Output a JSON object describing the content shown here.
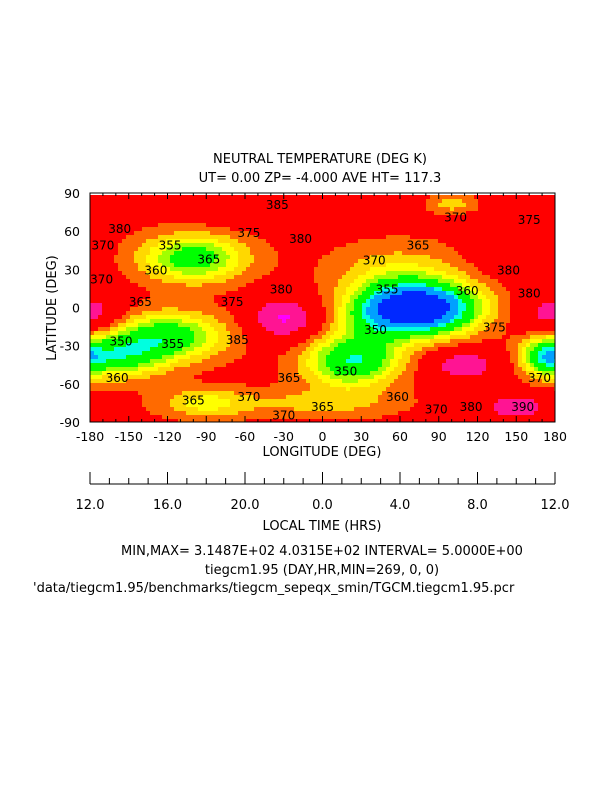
{
  "chart_data": {
    "type": "heatmap",
    "subtype": "filled-contour",
    "title": "NEUTRAL TEMPERATURE (DEG K)",
    "subtitle": "UT= 0.00 ZP= -4.000 AVE HT= 117.3",
    "xlabel": "LONGITUDE (DEG)",
    "ylabel": "LATITUDE (DEG)",
    "xlim": [
      -180,
      180
    ],
    "ylim": [
      -90,
      90
    ],
    "xticks": [
      "-180",
      "-150",
      "-120",
      "-90",
      "-60",
      "-30",
      "0",
      "30",
      "60",
      "90",
      "120",
      "150",
      "180"
    ],
    "yticks": [
      "90",
      "60",
      "30",
      "0",
      "-30",
      "-60",
      "-90"
    ],
    "secondary_axis": {
      "label": "LOCAL TIME (HRS)",
      "ticks": [
        {
          "lon": -180,
          "label": "12.0"
        },
        {
          "lon": -120,
          "label": "16.0"
        },
        {
          "lon": -60,
          "label": "20.0"
        },
        {
          "lon": 0,
          "label": "0.0"
        },
        {
          "lon": 60,
          "label": "4.0"
        },
        {
          "lon": 120,
          "label": "8.0"
        },
        {
          "lon": 180,
          "label": "12.0"
        }
      ]
    },
    "min": 314.87,
    "max": 403.15,
    "interval": 5.0,
    "base_value": 377,
    "features": [
      {
        "lon": 75,
        "lat": 0,
        "amp": -62,
        "slon": 30,
        "slat": 14
      },
      {
        "lon": -100,
        "lat": 40,
        "amp": -27,
        "slon": 28,
        "slat": 13
      },
      {
        "lon": -120,
        "lat": -22,
        "amp": -28,
        "slon": 30,
        "slat": 13
      },
      {
        "lon": -160,
        "lat": -38,
        "amp": -26,
        "slon": 25,
        "slat": 12
      },
      {
        "lon": 22,
        "lat": -42,
        "amp": -30,
        "slon": 25,
        "slat": 14
      },
      {
        "lon": 40,
        "lat": -10,
        "amp": -12,
        "slon": 20,
        "slat": 20
      },
      {
        "lon": 60,
        "lat": 30,
        "amp": -10,
        "slon": 35,
        "slat": 15
      },
      {
        "lon": -30,
        "lat": -8,
        "amp": 18,
        "slon": 18,
        "slat": 12
      },
      {
        "lon": 180,
        "lat": -5,
        "amp": 14,
        "slon": 18,
        "slat": 12
      },
      {
        "lon": 110,
        "lat": -45,
        "amp": 14,
        "slon": 20,
        "slat": 9
      },
      {
        "lon": 150,
        "lat": -78,
        "amp": 14,
        "slon": 20,
        "slat": 7
      },
      {
        "lon": -40,
        "lat": 78,
        "amp": 9,
        "slon": 40,
        "slat": 8
      },
      {
        "lon": 100,
        "lat": 83,
        "amp": -10,
        "slon": 12,
        "slat": 5
      },
      {
        "lon": -90,
        "lat": -75,
        "amp": -14,
        "slon": 25,
        "slat": 8
      },
      {
        "lon": 0,
        "lat": -75,
        "amp": -9,
        "slon": 40,
        "slat": 8
      },
      {
        "lon": 172,
        "lat": -38,
        "amp": -24,
        "slon": 12,
        "slat": 10
      },
      {
        "lon": 150,
        "lat": 40,
        "amp": 5,
        "slon": 25,
        "slat": 12
      }
    ],
    "bands": [
      {
        "max": 330,
        "color": "#0028ff"
      },
      {
        "max": 340,
        "color": "#00a0ff"
      },
      {
        "max": 345,
        "color": "#00ffe0"
      },
      {
        "max": 355,
        "color": "#00ff00"
      },
      {
        "max": 360,
        "color": "#a0ff00"
      },
      {
        "max": 365,
        "color": "#ffff00"
      },
      {
        "max": 370,
        "color": "#ffd800"
      },
      {
        "max": 375,
        "color": "#ff6a00"
      },
      {
        "max": 386,
        "color": "#ff0000"
      },
      {
        "max": 394,
        "color": "#ff1493"
      },
      {
        "max": 999,
        "color": "#ff00ff"
      }
    ],
    "contour_labels": [
      {
        "lon": -35,
        "lat": 82,
        "text": "385"
      },
      {
        "lon": -157,
        "lat": 63,
        "text": "380"
      },
      {
        "lon": -17,
        "lat": 55,
        "text": "380"
      },
      {
        "lon": 103,
        "lat": 72,
        "text": "370"
      },
      {
        "lon": 160,
        "lat": 70,
        "text": "375"
      },
      {
        "lon": 144,
        "lat": 30,
        "text": "380"
      },
      {
        "lon": -57,
        "lat": 60,
        "text": "375"
      },
      {
        "lon": -170,
        "lat": 50,
        "text": "370"
      },
      {
        "lon": -118,
        "lat": 50,
        "text": "355"
      },
      {
        "lon": -129,
        "lat": 30,
        "text": "360"
      },
      {
        "lon": -88,
        "lat": 39,
        "text": "365"
      },
      {
        "lon": 40,
        "lat": 38,
        "text": "370"
      },
      {
        "lon": 74,
        "lat": 50,
        "text": "365"
      },
      {
        "lon": -171,
        "lat": 23,
        "text": "370"
      },
      {
        "lon": -32,
        "lat": 15,
        "text": "380"
      },
      {
        "lon": -70,
        "lat": 5,
        "text": "375"
      },
      {
        "lon": -141,
        "lat": 5,
        "text": "365"
      },
      {
        "lon": 50,
        "lat": 15,
        "text": "355"
      },
      {
        "lon": 112,
        "lat": 14,
        "text": "360"
      },
      {
        "lon": 160,
        "lat": 12,
        "text": "380"
      },
      {
        "lon": -156,
        "lat": -26,
        "text": "350"
      },
      {
        "lon": -116,
        "lat": -28,
        "text": "355"
      },
      {
        "lon": -66,
        "lat": -25,
        "text": "385"
      },
      {
        "lon": 41,
        "lat": -17,
        "text": "350"
      },
      {
        "lon": 133,
        "lat": -15,
        "text": "375"
      },
      {
        "lon": -159,
        "lat": -55,
        "text": "360"
      },
      {
        "lon": -100,
        "lat": -73,
        "text": "365"
      },
      {
        "lon": -57,
        "lat": -70,
        "text": "370"
      },
      {
        "lon": -26,
        "lat": -55,
        "text": "365"
      },
      {
        "lon": 18,
        "lat": -50,
        "text": "350"
      },
      {
        "lon": 58,
        "lat": -70,
        "text": "360"
      },
      {
        "lon": 0,
        "lat": -78,
        "text": "365"
      },
      {
        "lon": -30,
        "lat": -85,
        "text": "370"
      },
      {
        "lon": 88,
        "lat": -80,
        "text": "370"
      },
      {
        "lon": 115,
        "lat": -78,
        "text": "380"
      },
      {
        "lon": 168,
        "lat": -55,
        "text": "370"
      },
      {
        "lon": 155,
        "lat": -78,
        "text": "390"
      }
    ]
  },
  "footer": {
    "minmax": "MIN,MAX=  3.1487E+02  4.0315E+02 INTERVAL=  5.0000E+00",
    "run": "tiegcm1.95 (DAY,HR,MIN=269, 0, 0)",
    "path": "'data/tiegcm1.95/benchmarks/tiegcm_sepeqx_smin/TGCM.tiegcm1.95.pcr"
  }
}
